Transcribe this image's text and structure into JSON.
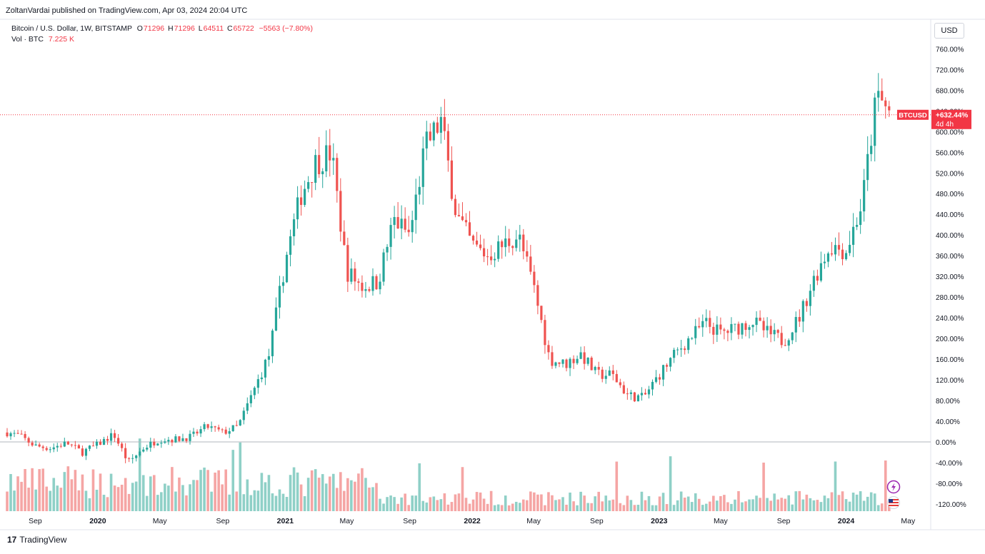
{
  "header": {
    "published": "ZoltanVardai published on TradingView.com, Apr 03, 2024 20:04 UTC"
  },
  "legend": {
    "symbol": "Bitcoin / U.S. Dollar, 1W, BITSTAMP",
    "o_label": "O",
    "o_value": "71296",
    "h_label": "H",
    "h_value": "71296",
    "l_label": "L",
    "l_value": "64511",
    "c_label": "C",
    "c_value": "65722",
    "change": "−5563 (−7.80%)",
    "vol_label": "Vol · BTC",
    "vol_value": "7.225 K"
  },
  "currency_button": "USD",
  "price_badge": {
    "symbol": "BTCUSD",
    "value": "+632.44%",
    "countdown": "4d 4h"
  },
  "footer": {
    "brand": "TradingView",
    "logo_glyph": "17"
  },
  "colors": {
    "up": "#26a69a",
    "down": "#ef5350",
    "vol_up": "#8fd0c7",
    "vol_down": "#f5a5a4",
    "badge": "#f23645",
    "zero_line": "#b2b5be"
  },
  "icons": [
    "lightning-icon",
    "us-flag-icon"
  ],
  "chart_data": {
    "type": "candlestick",
    "y_unit": "percent change",
    "ylim": [
      -130,
      780
    ],
    "y_ticks": [
      "760.00%",
      "720.00%",
      "680.00%",
      "640.00%",
      "600.00%",
      "560.00%",
      "520.00%",
      "480.00%",
      "440.00%",
      "400.00%",
      "360.00%",
      "320.00%",
      "280.00%",
      "240.00%",
      "200.00%",
      "160.00%",
      "120.00%",
      "80.00%",
      "40.00%",
      "0.00%",
      "-40.00%",
      "-80.00%",
      "-120.00%"
    ],
    "x_ticks": [
      "Sep",
      "2020",
      "May",
      "Sep",
      "2021",
      "May",
      "Sep",
      "2022",
      "May",
      "Sep",
      "2023",
      "May",
      "Sep",
      "2024",
      "May"
    ],
    "last_value_percent": 632.44,
    "series_name": "BTCUSD",
    "trend": [
      [
        "2019-07-01",
        20
      ],
      [
        "2019-08-01",
        12
      ],
      [
        "2019-09-01",
        -8
      ],
      [
        "2019-10-01",
        -12
      ],
      [
        "2019-11-01",
        -2
      ],
      [
        "2019-12-01",
        -20
      ],
      [
        "2020-01-01",
        -5
      ],
      [
        "2020-02-01",
        15
      ],
      [
        "2020-03-01",
        -40
      ],
      [
        "2020-04-01",
        -10
      ],
      [
        "2020-05-01",
        5
      ],
      [
        "2020-06-01",
        5
      ],
      [
        "2020-07-01",
        10
      ],
      [
        "2020-08-01",
        30
      ],
      [
        "2020-09-01",
        18
      ],
      [
        "2020-10-01",
        30
      ],
      [
        "2020-11-01",
        100
      ],
      [
        "2020-12-01",
        170
      ],
      [
        "2021-01-01",
        350
      ],
      [
        "2021-02-01",
        480
      ],
      [
        "2021-03-01",
        540
      ],
      [
        "2021-04-01",
        560
      ],
      [
        "2021-05-01",
        330
      ],
      [
        "2021-06-01",
        300
      ],
      [
        "2021-07-01",
        310
      ],
      [
        "2021-08-01",
        430
      ],
      [
        "2021-09-01",
        400
      ],
      [
        "2021-10-01",
        570
      ],
      [
        "2021-11-01",
        620
      ],
      [
        "2021-12-01",
        440
      ],
      [
        "2022-01-01",
        380
      ],
      [
        "2022-02-01",
        360
      ],
      [
        "2022-03-01",
        380
      ],
      [
        "2022-04-01",
        400
      ],
      [
        "2022-05-01",
        300
      ],
      [
        "2022-06-01",
        160
      ],
      [
        "2022-07-01",
        150
      ],
      [
        "2022-08-01",
        170
      ],
      [
        "2022-09-01",
        130
      ],
      [
        "2022-10-01",
        130
      ],
      [
        "2022-11-01",
        90
      ],
      [
        "2022-12-01",
        85
      ],
      [
        "2023-01-01",
        130
      ],
      [
        "2023-02-01",
        170
      ],
      [
        "2023-03-01",
        200
      ],
      [
        "2023-04-01",
        230
      ],
      [
        "2023-05-01",
        210
      ],
      [
        "2023-06-01",
        220
      ],
      [
        "2023-07-01",
        235
      ],
      [
        "2023-08-01",
        210
      ],
      [
        "2023-09-01",
        195
      ],
      [
        "2023-10-01",
        240
      ],
      [
        "2023-11-01",
        320
      ],
      [
        "2023-12-01",
        380
      ],
      [
        "2024-01-01",
        370
      ],
      [
        "2024-02-01",
        460
      ],
      [
        "2024-03-01",
        670
      ],
      [
        "2024-03-29",
        632
      ]
    ]
  }
}
